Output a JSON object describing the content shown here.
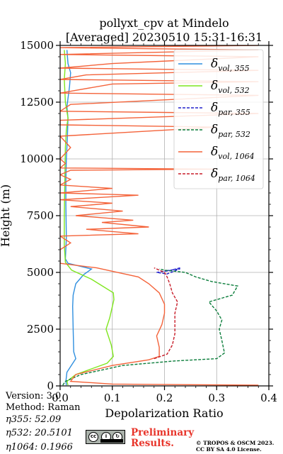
{
  "chart_data": {
    "type": "line",
    "title": "pollyxt_cpv at Mindelo",
    "subtitle": "[Averaged] 20230510 15:31-16:31",
    "xlabel": "Depolarization Ratio",
    "ylabel": "Height (m)",
    "xlim": [
      0.0,
      0.4
    ],
    "ylim": [
      0,
      15000
    ],
    "xticks": [
      "0.0",
      "0.1",
      "0.2",
      "0.3",
      "0.4"
    ],
    "yticks": [
      "0",
      "2500",
      "5000",
      "7500",
      "10000",
      "12500",
      "15000"
    ],
    "grid": true,
    "legend_position": "top-right",
    "series": [
      {
        "id": "vol355",
        "legend_base": "δ",
        "legend_sub": "vol, 355",
        "color": "#2f8fdf",
        "dash": "solid",
        "points": [
          [
            0.012,
            30
          ],
          [
            0.011,
            200
          ],
          [
            0.013,
            600
          ],
          [
            0.03,
            1200
          ],
          [
            0.026,
            1500
          ],
          [
            0.025,
            2500
          ],
          [
            0.024,
            3500
          ],
          [
            0.025,
            4000
          ],
          [
            0.03,
            4500
          ],
          [
            0.045,
            4900
          ],
          [
            0.06,
            5150
          ],
          [
            0.015,
            5400
          ],
          [
            0.01,
            5600
          ],
          [
            0.012,
            6500
          ],
          [
            0.011,
            8000
          ],
          [
            0.011,
            9000
          ],
          [
            0.012,
            10000
          ],
          [
            0.014,
            11000
          ],
          [
            0.015,
            11800
          ],
          [
            0.013,
            12300
          ],
          [
            0.018,
            13200
          ],
          [
            0.02,
            13800
          ],
          [
            0.015,
            14200
          ],
          [
            0.013,
            14800
          ]
        ]
      },
      {
        "id": "vol532",
        "legend_base": "δ",
        "legend_sub": "vol, 532",
        "color": "#7fe61e",
        "dash": "solid",
        "points": [
          [
            0.015,
            30
          ],
          [
            0.013,
            200
          ],
          [
            0.03,
            500
          ],
          [
            0.09,
            1000
          ],
          [
            0.102,
            1300
          ],
          [
            0.098,
            1800
          ],
          [
            0.088,
            2500
          ],
          [
            0.095,
            3000
          ],
          [
            0.103,
            3800
          ],
          [
            0.102,
            4100
          ],
          [
            0.06,
            4700
          ],
          [
            0.022,
            5100
          ],
          [
            0.01,
            5450
          ],
          [
            0.008,
            6200
          ],
          [
            0.008,
            7500
          ],
          [
            0.009,
            9000
          ],
          [
            0.01,
            10500
          ],
          [
            0.012,
            11300
          ],
          [
            0.015,
            11800
          ],
          [
            0.01,
            12500
          ],
          [
            0.008,
            13500
          ],
          [
            0.01,
            14200
          ],
          [
            0.008,
            14800
          ]
        ]
      },
      {
        "id": "par355",
        "legend_base": "δ",
        "legend_sub": "par, 355",
        "color": "#2222cc",
        "dash": "dashed",
        "points": [
          [
            0.23,
            5200
          ],
          [
            0.21,
            5080
          ],
          [
            0.185,
            5000
          ],
          [
            0.205,
            4930
          ],
          [
            0.23,
            5160
          ],
          [
            0.2,
            5060
          ]
        ]
      },
      {
        "id": "par532",
        "legend_base": "δ",
        "legend_sub": "par, 532",
        "color": "#0b7d3b",
        "dash": "dashed",
        "points": [
          [
            0.005,
            30
          ],
          [
            0.01,
            200
          ],
          [
            0.04,
            500
          ],
          [
            0.12,
            900
          ],
          [
            0.22,
            1100
          ],
          [
            0.3,
            1200
          ],
          [
            0.315,
            1450
          ],
          [
            0.31,
            2000
          ],
          [
            0.305,
            2500
          ],
          [
            0.31,
            2900
          ],
          [
            0.3,
            3300
          ],
          [
            0.285,
            3700
          ],
          [
            0.33,
            4000
          ],
          [
            0.34,
            4400
          ],
          [
            0.29,
            4600
          ],
          [
            0.26,
            4800
          ],
          [
            0.24,
            5000
          ],
          [
            0.2,
            5100
          ],
          [
            0.19,
            5150
          ]
        ]
      },
      {
        "id": "vol1064",
        "legend_base": "δ",
        "legend_sub": "vol, 1064",
        "color": "#f4633a",
        "dash": "solid",
        "points": [
          [
            0.38,
            30
          ],
          [
            0.1,
            80
          ],
          [
            0.02,
            200
          ],
          [
            0.03,
            500
          ],
          [
            0.1,
            900
          ],
          [
            0.17,
            1150
          ],
          [
            0.19,
            1300
          ],
          [
            0.19,
            1700
          ],
          [
            0.185,
            2200
          ],
          [
            0.195,
            2700
          ],
          [
            0.2,
            3200
          ],
          [
            0.2,
            3600
          ],
          [
            0.19,
            4100
          ],
          [
            0.17,
            4500
          ],
          [
            0.15,
            4800
          ],
          [
            0.07,
            5200
          ],
          [
            0.0,
            5400
          ],
          [
            0.0,
            6000
          ],
          [
            0.02,
            6300
          ],
          [
            0.0,
            6600
          ],
          [
            0.15,
            6700
          ],
          [
            0.05,
            6900
          ],
          [
            0.17,
            7000
          ],
          [
            0.08,
            7200
          ],
          [
            0.14,
            7300
          ],
          [
            0.03,
            7500
          ],
          [
            0.12,
            7700
          ],
          [
            0.02,
            7900
          ],
          [
            0.1,
            8050
          ],
          [
            0.0,
            8200
          ],
          [
            0.15,
            8400
          ],
          [
            0.0,
            8500
          ],
          [
            0.1,
            8700
          ],
          [
            0.0,
            8850
          ],
          [
            0.02,
            9100
          ],
          [
            0.0,
            9300
          ],
          [
            0.02,
            9500
          ],
          [
            0.3,
            9550
          ],
          [
            0.0,
            9600
          ],
          [
            0.01,
            9800
          ],
          [
            0.0,
            10000
          ],
          [
            0.02,
            10500
          ],
          [
            0.0,
            11000
          ],
          [
            0.3,
            11400
          ],
          [
            0.0,
            11500
          ],
          [
            0.0,
            11700
          ],
          [
            0.38,
            12000
          ],
          [
            0.0,
            12100
          ],
          [
            0.02,
            12400
          ],
          [
            0.38,
            12800
          ],
          [
            0.0,
            12900
          ],
          [
            0.1,
            13300
          ],
          [
            0.38,
            13400
          ],
          [
            0.0,
            13500
          ],
          [
            0.05,
            13700
          ],
          [
            0.38,
            13900
          ],
          [
            0.0,
            14000
          ],
          [
            0.1,
            14200
          ],
          [
            0.38,
            14500
          ],
          [
            0.0,
            14600
          ],
          [
            0.38,
            14800
          ],
          [
            0.0,
            14900
          ],
          [
            0.38,
            15000
          ]
        ]
      },
      {
        "id": "par1064",
        "legend_base": "δ",
        "legend_sub": "par, 1064",
        "color": "#c81e2a",
        "dash": "dashed",
        "points": [
          [
            0.18,
            1200
          ],
          [
            0.205,
            1400
          ],
          [
            0.215,
            1800
          ],
          [
            0.22,
            2300
          ],
          [
            0.22,
            2800
          ],
          [
            0.22,
            3200
          ],
          [
            0.225,
            3700
          ],
          [
            0.215,
            4100
          ],
          [
            0.21,
            4500
          ],
          [
            0.205,
            4800
          ],
          [
            0.2,
            5000
          ],
          [
            0.19,
            5100
          ],
          [
            0.18,
            5200
          ]
        ]
      }
    ]
  },
  "meta": {
    "version": "Version: 3.0",
    "method": "Method: Raman",
    "eta355": "η355:  52.09",
    "eta532": "η532: 20.5101",
    "eta1064": "η1064: 0.1966"
  },
  "footer": {
    "prelim1": "Preliminary",
    "prelim2": "Results.",
    "copy1": "© TROPOS & OSCM 2023.",
    "copy2": "CC BY SA 4.0 License."
  },
  "logo": {
    "name": "cc-by-sa-icon"
  }
}
